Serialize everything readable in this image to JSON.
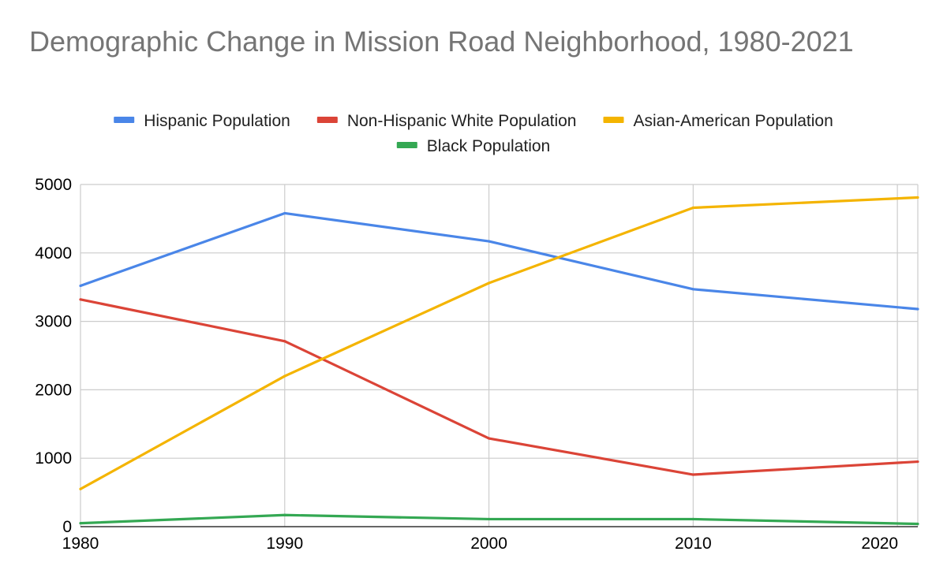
{
  "chart_data": {
    "type": "line",
    "title": "Demographic Change in Mission Road Neighborhood, 1980-2021",
    "xlabel": "",
    "ylabel": "",
    "x": [
      1980,
      1990,
      2000,
      2010,
      2021
    ],
    "xticks": [
      "1980",
      "1990",
      "2000",
      "2010",
      "2020"
    ],
    "xlim": [
      1980,
      2021
    ],
    "ylim": [
      0,
      5000
    ],
    "yticks": [
      "0",
      "1000",
      "2000",
      "3000",
      "4000",
      "5000"
    ],
    "grid": true,
    "legend_position": "top",
    "series": [
      {
        "name": "Hispanic Population",
        "color": "#4a86e8",
        "values": [
          3520,
          4580,
          4170,
          3470,
          3180
        ]
      },
      {
        "name": "Non-Hispanic White Population",
        "color": "#db4437",
        "values": [
          3320,
          2710,
          1290,
          760,
          950
        ]
      },
      {
        "name": "Asian-American Population",
        "color": "#f4b400",
        "values": [
          550,
          2200,
          3560,
          4660,
          4810
        ]
      },
      {
        "name": "Black Population",
        "color": "#34a853",
        "values": [
          50,
          170,
          110,
          110,
          40
        ]
      }
    ]
  }
}
